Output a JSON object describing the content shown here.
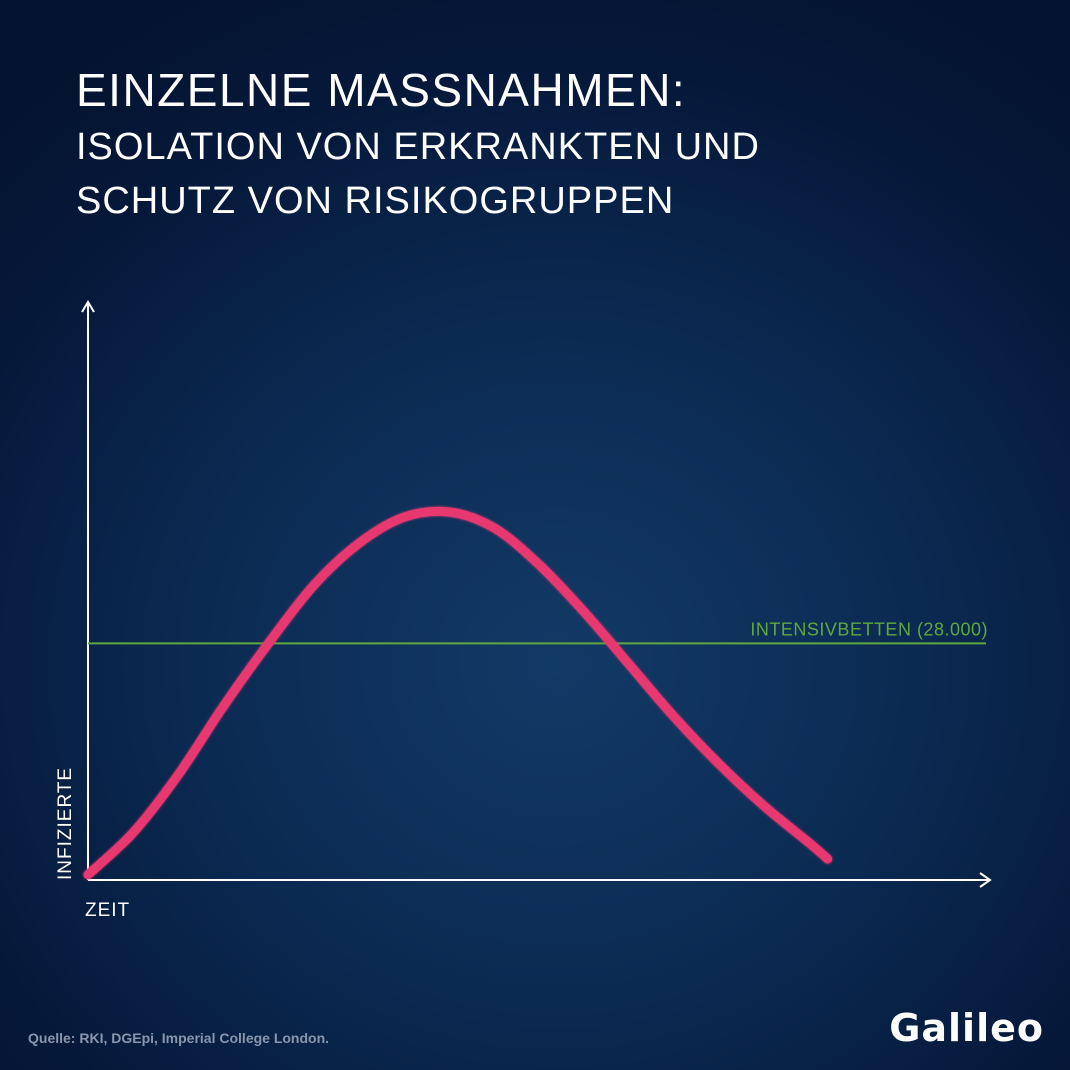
{
  "header": {
    "title": "EINZELNE MAßNAHMEN:",
    "subtitle_line1": "ISOLATION VON ERKRANKTEN UND",
    "subtitle_line2": "SCHUTZ VON RISIKOGRUPPEN"
  },
  "footer": {
    "source": "Quelle: RKI, DGEpi, Imperial College London.",
    "logo": "Galileo"
  },
  "colors": {
    "background": "#0b2a52",
    "curve": "#e8386f",
    "threshold": "#5fa83f",
    "axes": "#ffffff"
  },
  "chart_data": {
    "type": "line",
    "xlabel": "ZEIT",
    "ylabel": "INFIZIERTE",
    "ylim": [
      0,
      35
    ],
    "series": [
      {
        "values": [
          {
            "x": 0,
            "y": 0.5
          },
          {
            "x": 5,
            "y": 4.5
          },
          {
            "x": 10,
            "y": 10
          },
          {
            "x": 15,
            "y": 16.5
          },
          {
            "x": 20,
            "y": 22.5
          },
          {
            "x": 25,
            "y": 28
          },
          {
            "x": 30,
            "y": 32
          },
          {
            "x": 35,
            "y": 34.5
          },
          {
            "x": 40,
            "y": 35
          },
          {
            "x": 45,
            "y": 33.5
          },
          {
            "x": 50,
            "y": 30
          },
          {
            "x": 55,
            "y": 25.5
          },
          {
            "x": 60,
            "y": 20.5
          },
          {
            "x": 65,
            "y": 15.5
          },
          {
            "x": 70,
            "y": 11
          },
          {
            "x": 75,
            "y": 7
          },
          {
            "x": 80,
            "y": 3.5
          },
          {
            "x": 82,
            "y": 2
          }
        ]
      }
    ],
    "threshold": {
      "label": "INTENSIVBETTEN (28.000)",
      "y": 22.5
    },
    "xlim": [
      0,
      100
    ],
    "grid": false,
    "axes_arrows": true
  }
}
